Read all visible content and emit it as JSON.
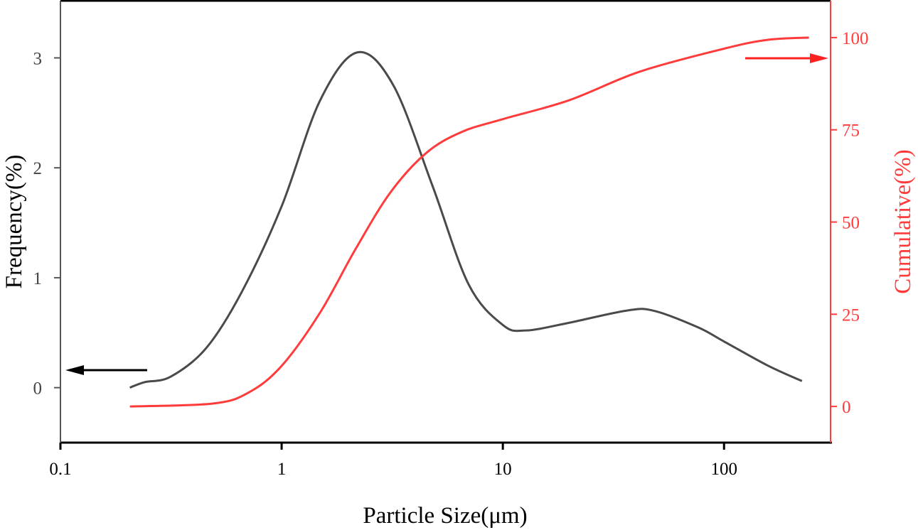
{
  "chart_data": {
    "type": "line",
    "title": "",
    "xlabel": "Particle Size(μm)",
    "ylabel": "Frequency(%)",
    "y2label": "Cumulative(%)",
    "xscale": "log",
    "xlim": [
      0.1,
      303
    ],
    "ylim": [
      -0.5,
      3.52
    ],
    "y2lim": [
      -9.8,
      110
    ],
    "xticks": [
      {
        "v": 0.1,
        "label": "0.1"
      },
      {
        "v": 1,
        "label": "1"
      },
      {
        "v": 10,
        "label": "10"
      },
      {
        "v": 100,
        "label": "100"
      }
    ],
    "yticks": [
      {
        "v": 0,
        "label": "0"
      },
      {
        "v": 1,
        "label": "1"
      },
      {
        "v": 2,
        "label": "2"
      },
      {
        "v": 3,
        "label": "3"
      }
    ],
    "y2ticks": [
      {
        "v": 0,
        "label": "0"
      },
      {
        "v": 25,
        "label": "25"
      },
      {
        "v": 50,
        "label": "50"
      },
      {
        "v": 75,
        "label": "75"
      },
      {
        "v": 100,
        "label": "100"
      }
    ],
    "grid": false,
    "colors": {
      "frequency": "#4a4a4a",
      "cumulative": "#ff3b3b",
      "right_axis": "#ff3b3b",
      "left_axis": "#555555"
    },
    "series": [
      {
        "name": "Frequency",
        "axis": "left",
        "x": [
          0.206,
          0.24,
          0.315,
          0.456,
          0.66,
          1.0,
          1.49,
          2.2,
          3.2,
          4.8,
          7.0,
          10,
          12.7,
          19.9,
          36,
          48,
          76,
          100,
          158,
          225
        ],
        "y": [
          0,
          0.05,
          0.1,
          0.36,
          0.87,
          1.65,
          2.61,
          3.05,
          2.75,
          1.84,
          0.94,
          0.57,
          0.52,
          0.59,
          0.7,
          0.7,
          0.55,
          0.42,
          0.2,
          0.06
        ]
      },
      {
        "name": "Cumulative",
        "axis": "right",
        "x": [
          0.206,
          0.49,
          0.71,
          1.0,
          1.49,
          2.16,
          3.1,
          4.5,
          6.5,
          10,
          19.9,
          41.7,
          100,
          158,
          242
        ],
        "y": [
          0,
          0.8,
          3.8,
          11,
          25.4,
          42.7,
          58,
          68.7,
          74.4,
          77.9,
          83,
          90.8,
          97,
          99.4,
          100
        ]
      }
    ],
    "annotations": [
      {
        "type": "arrow",
        "direction": "left",
        "series": "Frequency"
      },
      {
        "type": "arrow",
        "direction": "right",
        "series": "Cumulative"
      }
    ]
  }
}
